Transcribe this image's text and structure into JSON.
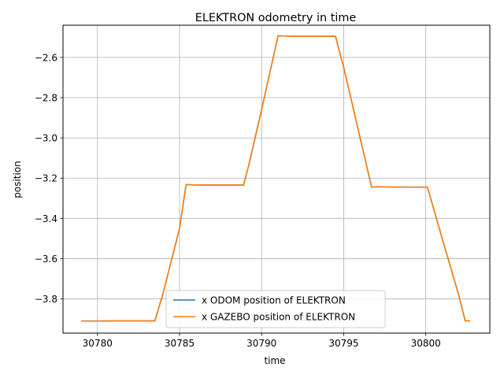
{
  "chart_data": {
    "type": "line",
    "title": "ELEKTRON odometry in time",
    "xlabel": "time",
    "ylabel": "position",
    "xlim": [
      30777.9,
      30803.9
    ],
    "ylim": [
      -3.97,
      -2.44
    ],
    "xticks": [
      30780,
      30785,
      30790,
      30795,
      30800
    ],
    "yticks": [
      -3.8,
      -3.6,
      -3.4,
      -3.2,
      -3.0,
      -2.8,
      -2.6
    ],
    "grid": true,
    "legend_position": "lower center",
    "series": [
      {
        "name": "x ODOM position of ELEKTRON",
        "color": "#1f77b4",
        "x": [
          30779.0,
          30780.0,
          30781.0,
          30782.0,
          30783.0,
          30783.5,
          30784.0,
          30785.0,
          30785.4,
          30786.0,
          30787.0,
          30788.0,
          30788.9,
          30789.2,
          30790.0,
          30791.0,
          30792.0,
          30793.0,
          30794.0,
          30794.5,
          30795.0,
          30796.0,
          30796.7,
          30797.0,
          30798.0,
          30799.0,
          30800.0,
          30800.1,
          30801.0,
          30802.0,
          30802.4,
          30802.7
        ],
        "y": [
          -3.91,
          -3.91,
          -3.909,
          -3.909,
          -3.909,
          -3.909,
          -3.77,
          -3.45,
          -3.232,
          -3.234,
          -3.234,
          -3.234,
          -3.234,
          -3.14,
          -2.86,
          -2.493,
          -2.495,
          -2.495,
          -2.495,
          -2.495,
          -2.65,
          -3.0,
          -3.245,
          -3.243,
          -3.244,
          -3.245,
          -3.245,
          -3.245,
          -3.5,
          -3.78,
          -3.908,
          -3.909
        ]
      },
      {
        "name": "x GAZEBO position of ELEKTRON",
        "color": "#ff7f0e",
        "x": [
          30779.0,
          30780.0,
          30781.0,
          30782.0,
          30783.0,
          30783.5,
          30784.0,
          30785.0,
          30785.4,
          30786.0,
          30787.0,
          30788.0,
          30788.9,
          30789.2,
          30790.0,
          30791.0,
          30792.0,
          30793.0,
          30794.0,
          30794.5,
          30795.0,
          30796.0,
          30796.7,
          30797.0,
          30798.0,
          30799.0,
          30800.0,
          30800.1,
          30801.0,
          30802.0,
          30802.4,
          30802.7
        ],
        "y": [
          -3.91,
          -3.91,
          -3.909,
          -3.909,
          -3.909,
          -3.909,
          -3.77,
          -3.45,
          -3.232,
          -3.234,
          -3.234,
          -3.234,
          -3.234,
          -3.14,
          -2.86,
          -2.493,
          -2.495,
          -2.495,
          -2.495,
          -2.495,
          -2.65,
          -3.0,
          -3.245,
          -3.243,
          -3.244,
          -3.245,
          -3.245,
          -3.245,
          -3.5,
          -3.78,
          -3.908,
          -3.909
        ]
      }
    ]
  }
}
